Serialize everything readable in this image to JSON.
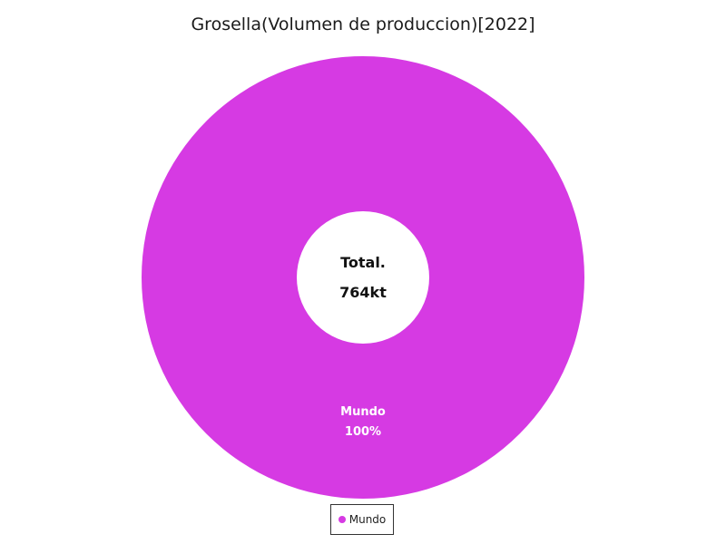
{
  "chart_data": {
    "type": "pie",
    "title": "Grosella(Volumen de produccion)[2022]",
    "center_label": "Total.",
    "center_value": "764kt",
    "slices": [
      {
        "name": "Mundo",
        "value": 764,
        "percent_label": "100%",
        "color": "#d63ae3"
      }
    ],
    "legend": {
      "position": "bottom",
      "entries": [
        "Mundo"
      ]
    }
  }
}
